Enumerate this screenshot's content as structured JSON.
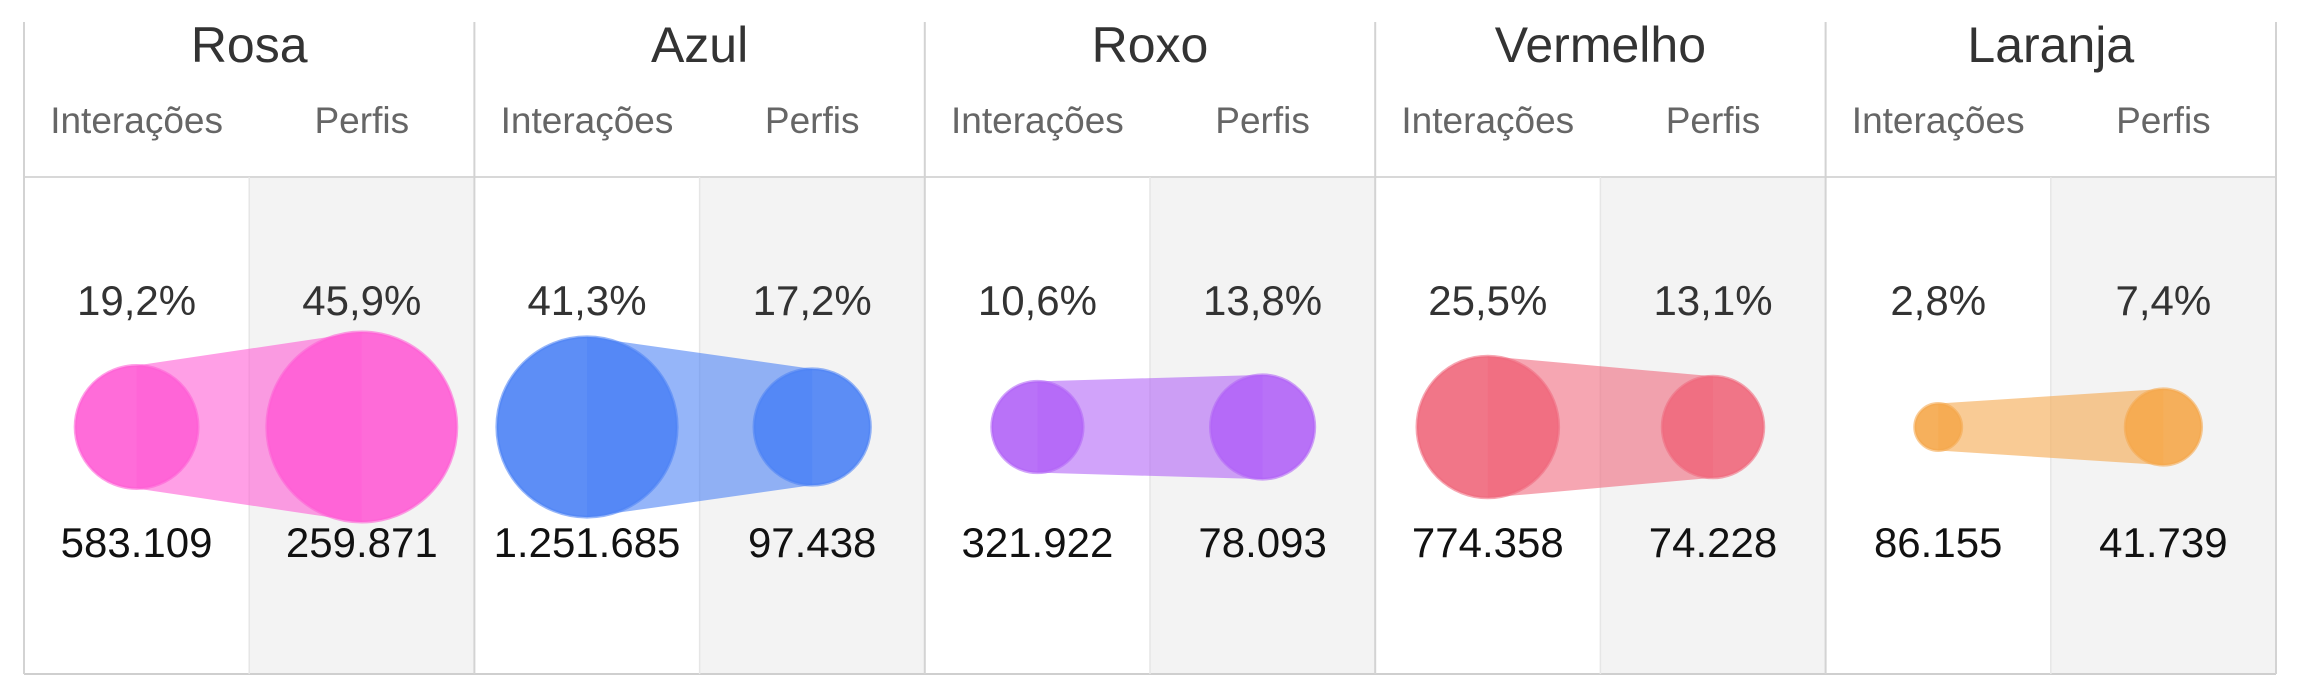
{
  "chart_data": {
    "type": "bubble-comparison",
    "column_labels": [
      "Interações",
      "Perfis"
    ],
    "groups": [
      {
        "name": "Rosa",
        "color": "#ff5fd6",
        "interacoes": {
          "pct": 19.2,
          "pct_label": "19,2%",
          "value": 583109,
          "value_label": "583.109"
        },
        "perfis": {
          "pct": 45.9,
          "pct_label": "45,9%",
          "value": 259871,
          "value_label": "259.871"
        }
      },
      {
        "name": "Azul",
        "color": "#4f84f5",
        "interacoes": {
          "pct": 41.3,
          "pct_label": "41,3%",
          "value": 1251685,
          "value_label": "1.251.685"
        },
        "perfis": {
          "pct": 17.2,
          "pct_label": "17,2%",
          "value": 97438,
          "value_label": "97.438"
        }
      },
      {
        "name": "Roxo",
        "color": "#b366f7",
        "interacoes": {
          "pct": 10.6,
          "pct_label": "10,6%",
          "value": 321922,
          "value_label": "321.922"
        },
        "perfis": {
          "pct": 13.8,
          "pct_label": "13,8%",
          "value": 78093,
          "value_label": "78.093"
        }
      },
      {
        "name": "Vermelho",
        "color": "#f06a7e",
        "interacoes": {
          "pct": 25.5,
          "pct_label": "25,5%",
          "value": 774358,
          "value_label": "774.358"
        },
        "perfis": {
          "pct": 13.1,
          "pct_label": "13,1%",
          "value": 74228,
          "value_label": "74.228"
        }
      },
      {
        "name": "Laranja",
        "color": "#f5a94e",
        "interacoes": {
          "pct": 2.8,
          "pct_label": "2,8%",
          "value": 86155,
          "value_label": "86.155"
        },
        "perfis": {
          "pct": 7.4,
          "pct_label": "7,4%",
          "value": 41739,
          "value_label": "41.739"
        }
      }
    ]
  }
}
